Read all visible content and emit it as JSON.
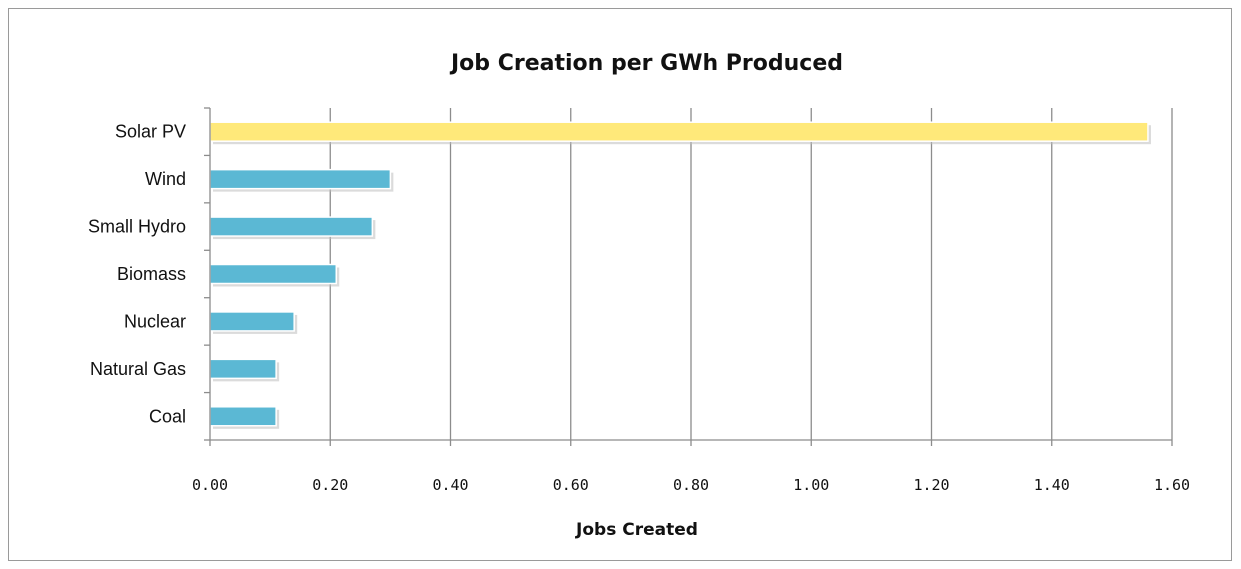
{
  "chart_data": {
    "type": "bar",
    "orientation": "horizontal",
    "title": "Job Creation per GWh Produced",
    "xlabel": "Jobs Created",
    "ylabel": "",
    "categories": [
      "Solar PV",
      "Wind",
      "Small Hydro",
      "Biomass",
      "Nuclear",
      "Natural Gas",
      "Coal"
    ],
    "values": [
      1.56,
      0.3,
      0.27,
      0.21,
      0.14,
      0.11,
      0.11
    ],
    "bar_colors": [
      "#FFE97A",
      "#5BB8D4",
      "#5BB8D4",
      "#5BB8D4",
      "#5BB8D4",
      "#5BB8D4",
      "#5BB8D4"
    ],
    "xlim": [
      0,
      1.6
    ],
    "x_ticks": [
      "0.00",
      "0.20",
      "0.40",
      "0.60",
      "0.80",
      "1.00",
      "1.20",
      "1.40",
      "1.60"
    ],
    "grid": "vertical",
    "legend": "none"
  }
}
